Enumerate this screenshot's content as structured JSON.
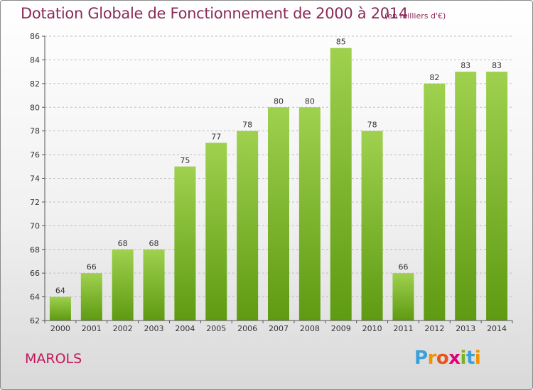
{
  "header": {
    "title": "Dotation Globale de Fonctionnement de 2000 à 2014",
    "unit": "(en milliers d'€)"
  },
  "footer": {
    "town": "MAROLS",
    "brand_letters": [
      "P",
      "r",
      "o",
      "x",
      "i",
      "t",
      "i"
    ],
    "brand_colors": [
      "#3aa0d8",
      "#f39200",
      "#e8541d",
      "#e2007a",
      "#7ab51d",
      "#3aa0d8",
      "#f39200"
    ]
  },
  "colors": {
    "bar_top": "#9fd14e",
    "bar_bottom": "#5e9a12",
    "grid": "#bfbfbf",
    "axis": "#555555"
  },
  "chart_data": {
    "type": "bar",
    "title": "Dotation Globale de Fonctionnement de 2000 à 2014",
    "subtitle": "(en milliers d'€)",
    "xlabel": "",
    "ylabel": "",
    "categories": [
      "2000",
      "2001",
      "2002",
      "2003",
      "2004",
      "2005",
      "2006",
      "2007",
      "2008",
      "2009",
      "2010",
      "2011",
      "2012",
      "2013",
      "2014"
    ],
    "values": [
      64,
      66,
      68,
      68,
      75,
      77,
      78,
      80,
      80,
      85,
      78,
      66,
      82,
      83,
      83
    ],
    "ylim": [
      62,
      86
    ],
    "yticks": [
      62,
      64,
      66,
      68,
      70,
      72,
      74,
      76,
      78,
      80,
      82,
      84,
      86
    ],
    "grid": true,
    "data_labels": true
  }
}
